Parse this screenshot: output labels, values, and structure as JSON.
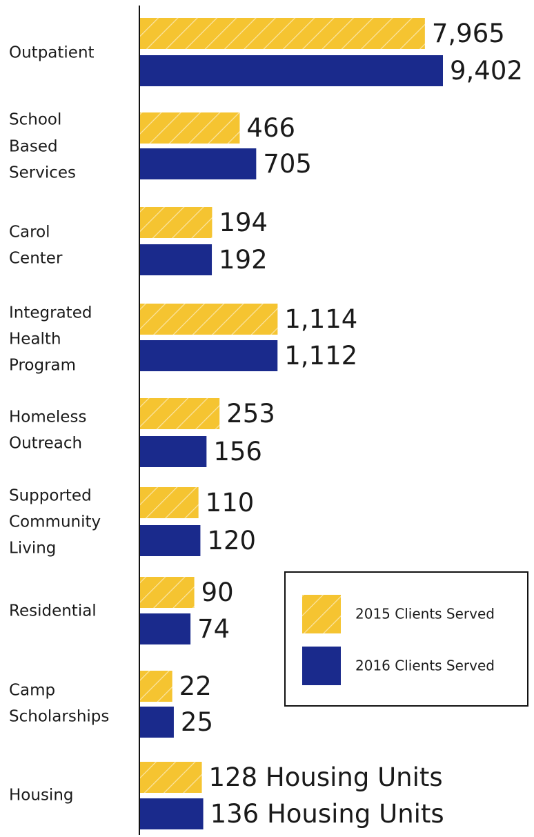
{
  "chart_data": {
    "type": "bar",
    "orientation": "horizontal",
    "categories": [
      [
        "Outpatient"
      ],
      [
        "School",
        "Based",
        "Services"
      ],
      [
        "Carol",
        "Center"
      ],
      [
        "Integrated",
        "Health",
        "Program"
      ],
      [
        "Homeless",
        "Outreach"
      ],
      [
        "Supported",
        "Community",
        "Living"
      ],
      [
        "Residential"
      ],
      [
        "Camp",
        "Scholarships"
      ],
      [
        "Housing"
      ]
    ],
    "series": [
      {
        "name": "2015 Clients Served",
        "color": "#F5C431",
        "pattern": "diagonal-hatch",
        "values": [
          7965,
          466,
          194,
          1114,
          253,
          110,
          90,
          22,
          128
        ],
        "value_labels": [
          "7,965",
          "466",
          "194",
          "1,114",
          "253",
          "110",
          "90",
          "22",
          "128 Housing Units"
        ]
      },
      {
        "name": "2016 Clients Served",
        "color": "#1A2A8C",
        "pattern": "solid",
        "values": [
          9402,
          705,
          192,
          1112,
          156,
          120,
          74,
          25,
          136
        ],
        "value_labels": [
          "9,402",
          "705",
          "192",
          "1,112",
          "156",
          "120",
          "74",
          "25",
          "136 Housing Units"
        ]
      }
    ],
    "scale": "non-linear (compressed)",
    "legend_position": "right, middle",
    "grid": false
  }
}
